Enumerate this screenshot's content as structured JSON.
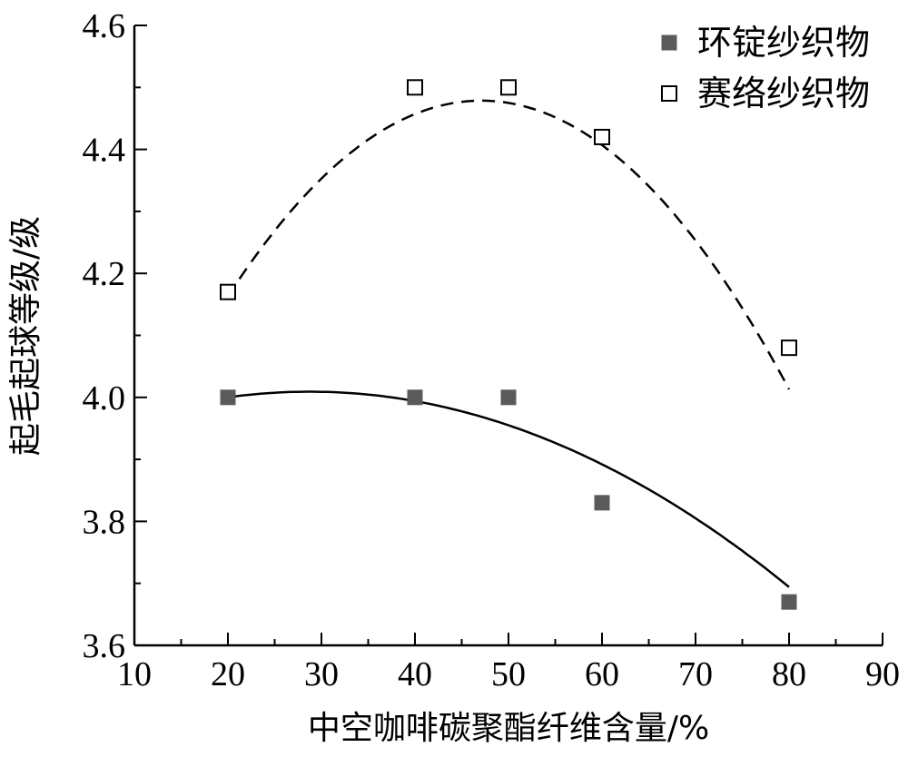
{
  "chart_data": {
    "type": "scatter",
    "title": "",
    "xlabel": "中空咖啡碳聚酯纤维含量/%",
    "ylabel": "起毛起球等级/级",
    "xlim": [
      10,
      90
    ],
    "ylim": [
      3.6,
      4.6
    ],
    "xticks": [
      "10",
      "20",
      "30",
      "40",
      "50",
      "60",
      "70",
      "80",
      "90"
    ],
    "yticks": [
      "3.6",
      "3.8",
      "4.0",
      "4.2",
      "4.4",
      "4.6"
    ],
    "grid": false,
    "legend_position": "top-right",
    "series": [
      {
        "name": "环锭纱织物",
        "marker": "filled-square",
        "color": "#5a5a5a",
        "line": "solid",
        "x": [
          20,
          40,
          50,
          60,
          80
        ],
        "y": [
          4.0,
          4.0,
          4.0,
          3.83,
          3.67
        ],
        "fit": [
          3.91,
          0.0069,
          -0.00012
        ]
      },
      {
        "name": "赛络纱织物",
        "marker": "hollow-square",
        "color": "#000000",
        "line": "dashed",
        "x": [
          20,
          40,
          50,
          60,
          80
        ],
        "y": [
          4.17,
          4.5,
          4.5,
          4.42,
          4.08
        ],
        "fit": [
          3.525,
          0.0405,
          -0.00043
        ]
      }
    ]
  }
}
